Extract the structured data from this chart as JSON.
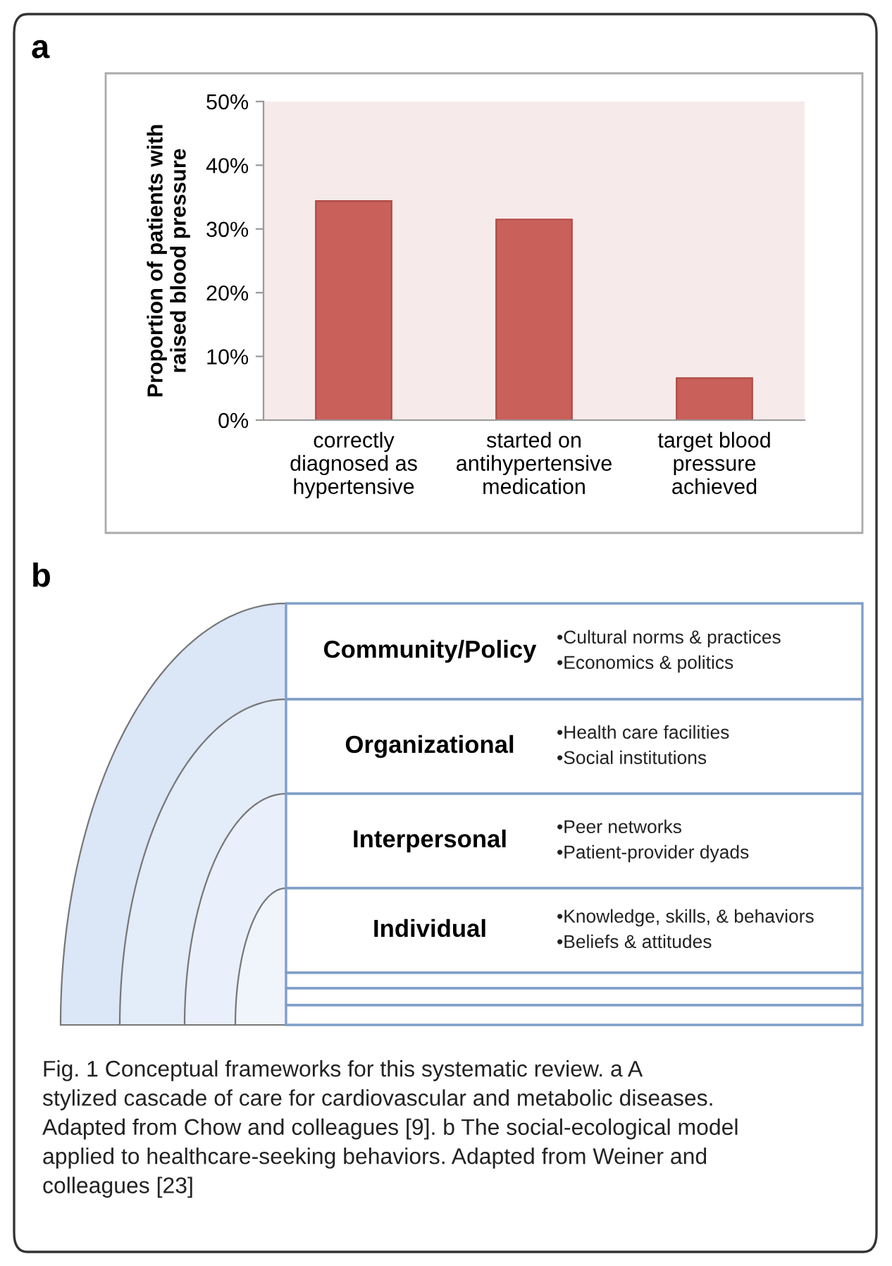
{
  "chart_data": [
    {
      "type": "bar",
      "title": "a",
      "ylabel": "Proportion of patients with\nraised blood pressure",
      "categories": [
        "correctly\ndiagnosed as\nhypertensive",
        "started on\nantihypertensive\nmedication",
        "target blood\npressure\nachieved"
      ],
      "values": [
        34.4,
        31.5,
        6.6
      ],
      "color": "#c9605a",
      "ylim": [
        0,
        50
      ],
      "yticks": [
        {
          "value": 0,
          "label": "0%"
        },
        {
          "value": 10,
          "label": "10%"
        },
        {
          "value": 20,
          "label": "20%"
        },
        {
          "value": 30,
          "label": "30%"
        },
        {
          "value": 40,
          "label": "40%"
        },
        {
          "value": 50,
          "label": "50%"
        }
      ]
    },
    {
      "type": "other",
      "title": "b",
      "annotations": [
        "Community/Policy",
        "•Cultural norms & practices",
        "•Economics & politics",
        "Organizational",
        "•Health care facilities",
        "•Social institutions",
        "Interpersonal",
        "•Peer networks",
        "•Patient-provider dyads",
        "Individual",
        "•Knowledge, skills, & behaviors",
        "•Beliefs & attitudes",
        "Fig. 1 Conceptual frameworks for this systematic review. a A\nstylized cascade of care for cardiovascular and metabolic diseases.\nAdapted from Chow and colleagues [9]. b The social-ecological model\napplied to healthcare-seeking behaviors. Adapted from Weiner and\ncolleagues [23]"
      ]
    }
  ]
}
